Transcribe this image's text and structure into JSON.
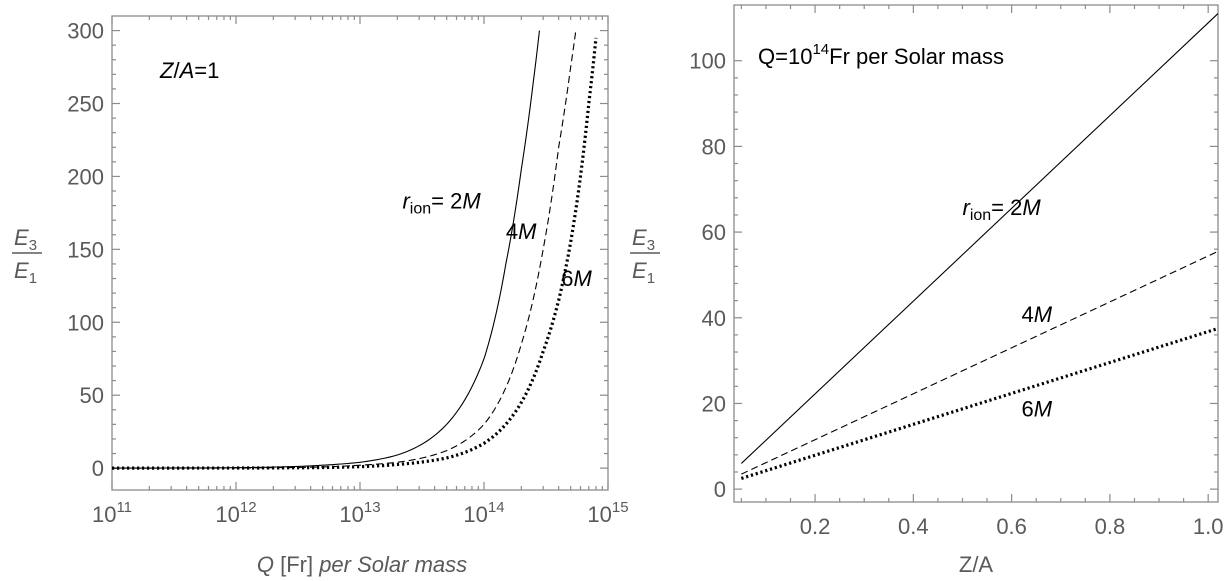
{
  "colors": {
    "axis": "#8c8c8c",
    "labels": "#5a5a5a",
    "curves": "#000000",
    "background": "#ffffff"
  },
  "chart_data": [
    {
      "type": "line",
      "xscale": "log",
      "xlim": [
        100000000000.0,
        1000000000000000.0
      ],
      "ylim": [
        -15,
        310
      ],
      "grid": false,
      "xlabel": {
        "q": "Q",
        "unit": " [Fr] ",
        "rest": "per Solar mass"
      },
      "ylabel": {
        "num": "E",
        "num_sub": "3",
        "den": "E",
        "den_sub": "1"
      },
      "x_ticks": [
        {
          "value": 100000000000.0,
          "base": "10",
          "exp": "11"
        },
        {
          "value": 1000000000000.0,
          "base": "10",
          "exp": "12"
        },
        {
          "value": 10000000000000.0,
          "base": "10",
          "exp": "13"
        },
        {
          "value": 100000000000000.0,
          "base": "10",
          "exp": "14"
        },
        {
          "value": 1000000000000000.0,
          "base": "10",
          "exp": "15"
        }
      ],
      "y_ticks": [
        0,
        50,
        100,
        150,
        200,
        250,
        300
      ],
      "annotation": {
        "z": "Z",
        "slash": "/",
        "a": "A",
        "rest": "=1"
      },
      "series": [
        {
          "style": "solid",
          "points": [
            [
              100000000000.0,
              0.03
            ],
            [
              1000000000000.0,
              0.3
            ],
            [
              2000000000000.0,
              0.7
            ],
            [
              5000000000000.0,
              2
            ],
            [
              10000000000000.0,
              4
            ],
            [
              20000000000000.0,
              9
            ],
            [
              50000000000000.0,
              30
            ],
            [
              100000000000000.0,
              75
            ],
            [
              150000000000000.0,
              140
            ],
            [
              200000000000000.0,
              205
            ],
            [
              250000000000000.0,
              265
            ],
            [
              280000000000000.0,
              300
            ]
          ]
        },
        {
          "style": "dashed",
          "points": [
            [
              100000000000.0,
              0.01
            ],
            [
              1000000000000.0,
              0.1
            ],
            [
              2000000000000.0,
              0.3
            ],
            [
              5000000000000.0,
              0.8
            ],
            [
              10000000000000.0,
              2
            ],
            [
              20000000000000.0,
              4
            ],
            [
              50000000000000.0,
              12
            ],
            [
              100000000000000.0,
              30
            ],
            [
              200000000000000.0,
              85
            ],
            [
              300000000000000.0,
              150
            ],
            [
              400000000000000.0,
              220
            ],
            [
              500000000000000.0,
              275
            ],
            [
              550000000000000.0,
              300
            ]
          ]
        },
        {
          "style": "dotted",
          "points": [
            [
              100000000000.0,
              0.005
            ],
            [
              1000000000000.0,
              0.06
            ],
            [
              2000000000000.0,
              0.15
            ],
            [
              5000000000000.0,
              0.4
            ],
            [
              10000000000000.0,
              1
            ],
            [
              20000000000000.0,
              2.5
            ],
            [
              50000000000000.0,
              7
            ],
            [
              100000000000000.0,
              17
            ],
            [
              200000000000000.0,
              45
            ],
            [
              300000000000000.0,
              80
            ],
            [
              400000000000000.0,
              115
            ],
            [
              500000000000000.0,
              155
            ],
            [
              600000000000000.0,
              200
            ],
            [
              700000000000000.0,
              250
            ],
            [
              800000000000000.0,
              295
            ]
          ]
        }
      ],
      "curve_labels": [
        {
          "prefix": "r",
          "sub": "ion",
          "eq": "= ",
          "text": "2M",
          "x": 22000000000000.0,
          "y": 178
        },
        {
          "text": "4M",
          "x": 150000000000000.0,
          "y": 157
        },
        {
          "text": "6M",
          "x": 420000000000000.0,
          "y": 125
        }
      ]
    },
    {
      "type": "line",
      "xscale": "linear",
      "xlim": [
        0.035,
        1.02
      ],
      "ylim": [
        -3,
        113
      ],
      "grid": false,
      "xlabel": "Z/A",
      "ylabel": {
        "num": "E",
        "num_sub": "3",
        "den": "E",
        "den_sub": "1"
      },
      "x_ticks": [
        0.2,
        0.4,
        0.6,
        0.8,
        1.0
      ],
      "x_tick_labels": [
        "0.2",
        "0.4",
        "0.6",
        "0.8",
        "1.0"
      ],
      "y_ticks": [
        0,
        20,
        40,
        60,
        80,
        100
      ],
      "annotation": {
        "prefix": "Q=10",
        "exp": "14",
        "rest": "Fr per Solar mass"
      },
      "series": [
        {
          "style": "solid",
          "points": [
            [
              0.05,
              6
            ],
            [
              1.02,
              111
            ]
          ]
        },
        {
          "style": "dashed",
          "points": [
            [
              0.05,
              3.5
            ],
            [
              1.02,
              55.5
            ]
          ]
        },
        {
          "style": "dotted",
          "points": [
            [
              0.05,
              2.5
            ],
            [
              1.02,
              37.5
            ]
          ]
        }
      ],
      "curve_labels": [
        {
          "prefix": "r",
          "sub": "ion",
          "eq": "= ",
          "text": "2M",
          "x": 0.5,
          "y": 64
        },
        {
          "text": "4M",
          "x": 0.62,
          "y": 39
        },
        {
          "text": "6M",
          "x": 0.62,
          "y": 17
        }
      ]
    }
  ]
}
